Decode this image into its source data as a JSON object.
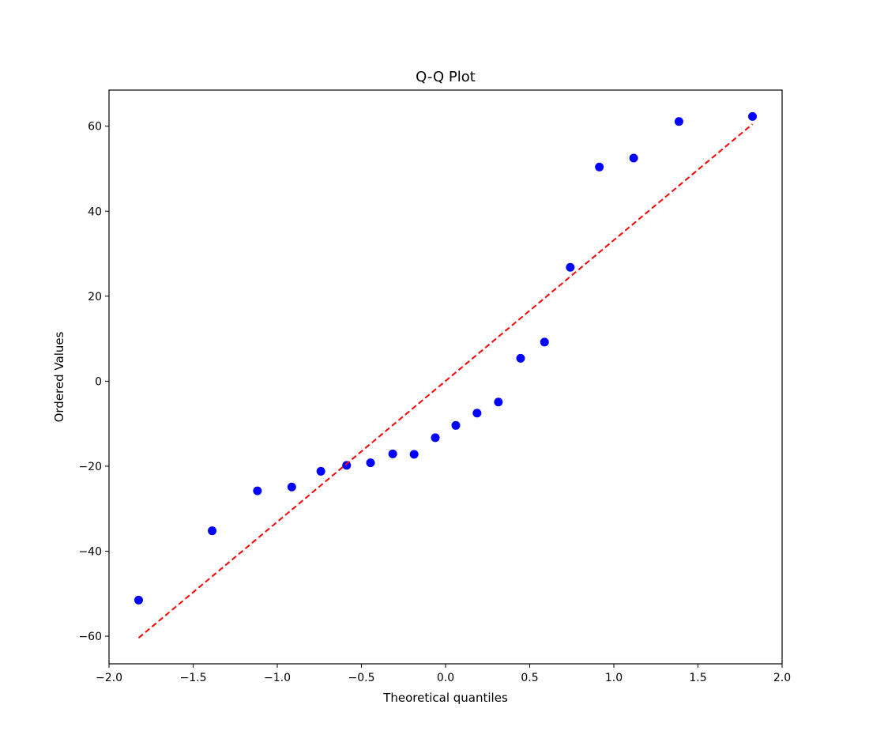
{
  "chart_data": {
    "type": "scatter",
    "title": "Q-Q Plot",
    "xlabel": "Theoretical quantiles",
    "ylabel": "Ordered Values",
    "xlim": [
      -2.0,
      2.0
    ],
    "ylim": [
      -66.5,
      68.5
    ],
    "x_ticks": [
      -2.0,
      -1.5,
      -1.0,
      -0.5,
      0.0,
      0.5,
      1.0,
      1.5,
      2.0
    ],
    "x_tick_labels": [
      "−2.0",
      "−1.5",
      "−1.0",
      "−0.5",
      "0.0",
      "0.5",
      "1.0",
      "1.5",
      "2.0"
    ],
    "y_ticks": [
      -60,
      -40,
      -20,
      0,
      20,
      40,
      60
    ],
    "y_tick_labels": [
      "−60",
      "−40",
      "−20",
      "0",
      "20",
      "40",
      "60"
    ],
    "grid": false,
    "series": [
      {
        "kind": "points",
        "color": "#0000ff",
        "x": [
          -1.824,
          -1.387,
          -1.118,
          -0.914,
          -0.741,
          -0.588,
          -0.446,
          -0.314,
          -0.187,
          -0.061,
          0.061,
          0.187,
          0.314,
          0.446,
          0.588,
          0.741,
          0.914,
          1.118,
          1.387,
          1.824
        ],
        "y": [
          -51.5,
          -35.2,
          -25.8,
          -24.9,
          -21.2,
          -19.8,
          -19.2,
          -17.1,
          -17.2,
          -13.3,
          -10.4,
          -7.5,
          -4.9,
          5.4,
          9.2,
          26.8,
          50.4,
          52.5,
          61.1,
          62.3
        ]
      },
      {
        "kind": "fit-line",
        "color": "#ff0000",
        "style": "dashed",
        "x": [
          -1.824,
          1.824
        ],
        "y": [
          -60.4,
          60.5
        ]
      }
    ]
  }
}
